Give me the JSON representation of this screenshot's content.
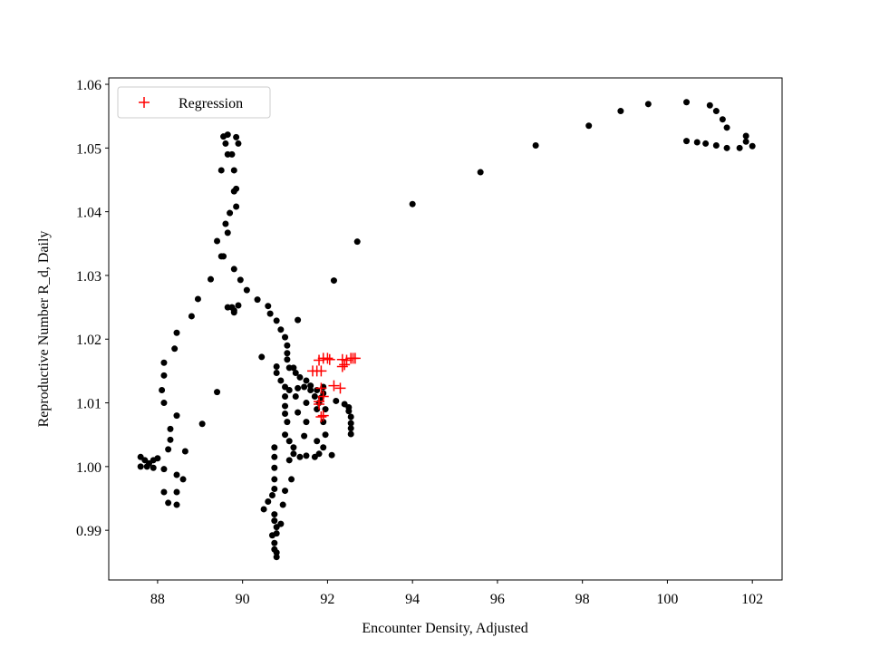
{
  "chart_data": {
    "type": "scatter",
    "x_label": "Encounter Density, Adjusted",
    "y_label": "Reproductive Number R_d, Daily",
    "xlim": [
      86.85,
      102.7
    ],
    "ylim": [
      0.9822,
      1.061
    ],
    "xticks": [
      88,
      90,
      92,
      94,
      96,
      98,
      100,
      102
    ],
    "yticks": [
      {
        "value": 0.99,
        "label": "0.99"
      },
      {
        "value": 1.0,
        "label": "1.00"
      },
      {
        "value": 1.01,
        "label": "1.01"
      },
      {
        "value": 1.02,
        "label": "1.02"
      },
      {
        "value": 1.03,
        "label": "1.03"
      },
      {
        "value": 1.04,
        "label": "1.04"
      },
      {
        "value": 1.05,
        "label": "1.05"
      },
      {
        "value": 1.06,
        "label": "1.06"
      }
    ],
    "legend": "upper left",
    "series": [
      {
        "color": "#000000",
        "marker": "dot",
        "x": [
          92.7,
          94.0,
          95.6,
          96.9,
          98.15,
          98.9,
          99.55,
          100.45,
          101.0,
          101.15,
          101.3,
          101.4,
          101.85,
          101.85,
          102.0,
          101.7,
          101.4,
          101.15,
          100.9,
          100.7,
          100.45,
          89.55,
          89.65,
          89.85,
          89.9,
          89.6,
          89.5,
          89.8,
          89.65,
          89.75,
          89.8,
          89.85,
          89.85,
          89.7,
          89.6,
          89.65,
          89.4,
          89.5,
          89.55,
          89.25,
          88.95,
          88.8,
          89.8,
          89.95,
          90.1,
          90.35,
          90.6,
          90.65,
          90.8,
          90.9,
          91.0,
          91.05,
          91.05,
          91.05,
          91.1,
          91.2,
          91.25,
          91.35,
          91.5,
          91.6,
          91.75,
          91.9,
          92.2,
          92.4,
          92.5,
          92.5,
          92.55,
          92.55,
          92.55,
          92.55,
          89.75,
          89.8,
          89.9,
          89.65,
          89.8,
          89.4,
          91.3,
          92.15,
          90.45,
          88.45,
          88.4,
          88.15,
          88.15,
          88.1,
          88.15,
          88.3,
          88.3,
          88.45,
          88.25,
          88.65,
          89.05,
          87.6,
          87.6,
          87.7,
          87.8,
          87.9,
          88.0,
          87.75,
          87.9,
          88.15,
          88.45,
          88.6,
          88.15,
          88.45,
          88.25,
          88.45,
          90.8,
          90.8,
          90.9,
          91.0,
          91.1,
          91.0,
          91.0,
          91.0,
          91.05,
          91.0,
          91.1,
          91.2,
          91.2,
          91.1,
          90.75,
          90.75,
          90.75,
          90.75,
          90.75,
          90.7,
          90.6,
          90.5,
          90.75,
          90.75,
          90.8,
          90.9,
          90.8,
          90.75,
          90.75,
          90.8,
          90.8,
          90.7,
          90.95,
          91.0,
          91.15,
          91.35,
          91.5,
          91.7,
          91.8,
          91.9,
          91.75,
          91.45,
          91.3,
          91.25,
          91.3,
          91.45,
          91.6,
          91.7,
          91.8,
          91.95,
          91.9,
          91.95,
          91.5,
          92.1,
          91.85,
          91.9,
          91.5,
          91.75
        ],
        "values": [
          1.0353,
          1.0412,
          1.0462,
          1.0504,
          1.0535,
          1.0558,
          1.0569,
          1.0572,
          1.0567,
          1.0558,
          1.0545,
          1.0532,
          1.0519,
          1.051,
          1.0503,
          1.05,
          1.05,
          1.0504,
          1.0507,
          1.0509,
          1.0511,
          1.0518,
          1.0521,
          1.0517,
          1.0507,
          1.0507,
          1.0465,
          1.0465,
          1.049,
          1.049,
          1.0432,
          1.0436,
          1.0408,
          1.0398,
          1.0381,
          1.0367,
          1.0354,
          1.033,
          1.033,
          1.0294,
          1.0263,
          1.0236,
          1.031,
          1.0293,
          1.0277,
          1.0262,
          1.0252,
          1.024,
          1.0229,
          1.0215,
          1.0203,
          1.019,
          1.0178,
          1.0168,
          1.0155,
          1.0155,
          1.0147,
          1.014,
          1.0135,
          1.0127,
          1.012,
          1.0115,
          1.0103,
          1.0098,
          1.0093,
          1.0087,
          1.0078,
          1.0068,
          1.006,
          1.0051,
          1.025,
          1.0245,
          1.0253,
          1.025,
          1.0242,
          1.0117,
          1.023,
          1.0292,
          1.0172,
          1.021,
          1.0185,
          1.0163,
          1.0143,
          1.012,
          1.01,
          1.0059,
          1.0042,
          1.008,
          1.0027,
          1.0024,
          1.0067,
          1.0015,
          1.0,
          1.001,
          1.0005,
          1.001,
          1.0013,
          1.0,
          0.9998,
          0.9996,
          0.9987,
          0.998,
          0.996,
          0.996,
          0.9943,
          0.994,
          1.0157,
          1.0147,
          1.0135,
          1.0125,
          1.012,
          1.011,
          1.0095,
          1.0083,
          1.007,
          1.005,
          1.004,
          1.003,
          1.002,
          1.001,
          1.003,
          1.0015,
          0.9998,
          0.998,
          0.9965,
          0.9955,
          0.9945,
          0.9933,
          0.9925,
          0.9915,
          0.9905,
          0.991,
          0.9895,
          0.988,
          0.987,
          0.9865,
          0.9858,
          0.9892,
          0.994,
          0.9962,
          0.998,
          1.0015,
          1.0017,
          1.0015,
          1.002,
          1.003,
          1.004,
          1.0048,
          1.0085,
          1.011,
          1.0123,
          1.0125,
          1.012,
          1.011,
          1.01,
          1.009,
          1.007,
          1.005,
          1.007,
          1.0018,
          1.0108,
          1.0125,
          1.01,
          1.009
        ]
      },
      {
        "name": "Regression",
        "color": "#ff0000",
        "marker": "plus",
        "x": [
          91.65,
          91.75,
          91.85,
          91.8,
          91.9,
          92.0,
          92.05,
          92.35,
          92.45,
          92.55,
          92.6,
          92.65,
          92.35,
          92.4,
          91.85,
          91.9,
          92.15,
          92.3,
          91.8,
          91.9,
          91.85,
          91.8
        ],
        "values": [
          1.015,
          1.015,
          1.015,
          1.0167,
          1.017,
          1.017,
          1.0168,
          1.0168,
          1.0167,
          1.017,
          1.017,
          1.017,
          1.0157,
          1.016,
          1.0123,
          1.011,
          1.0127,
          1.0123,
          1.0102,
          1.008,
          1.0078,
          1.0098
        ]
      }
    ]
  }
}
